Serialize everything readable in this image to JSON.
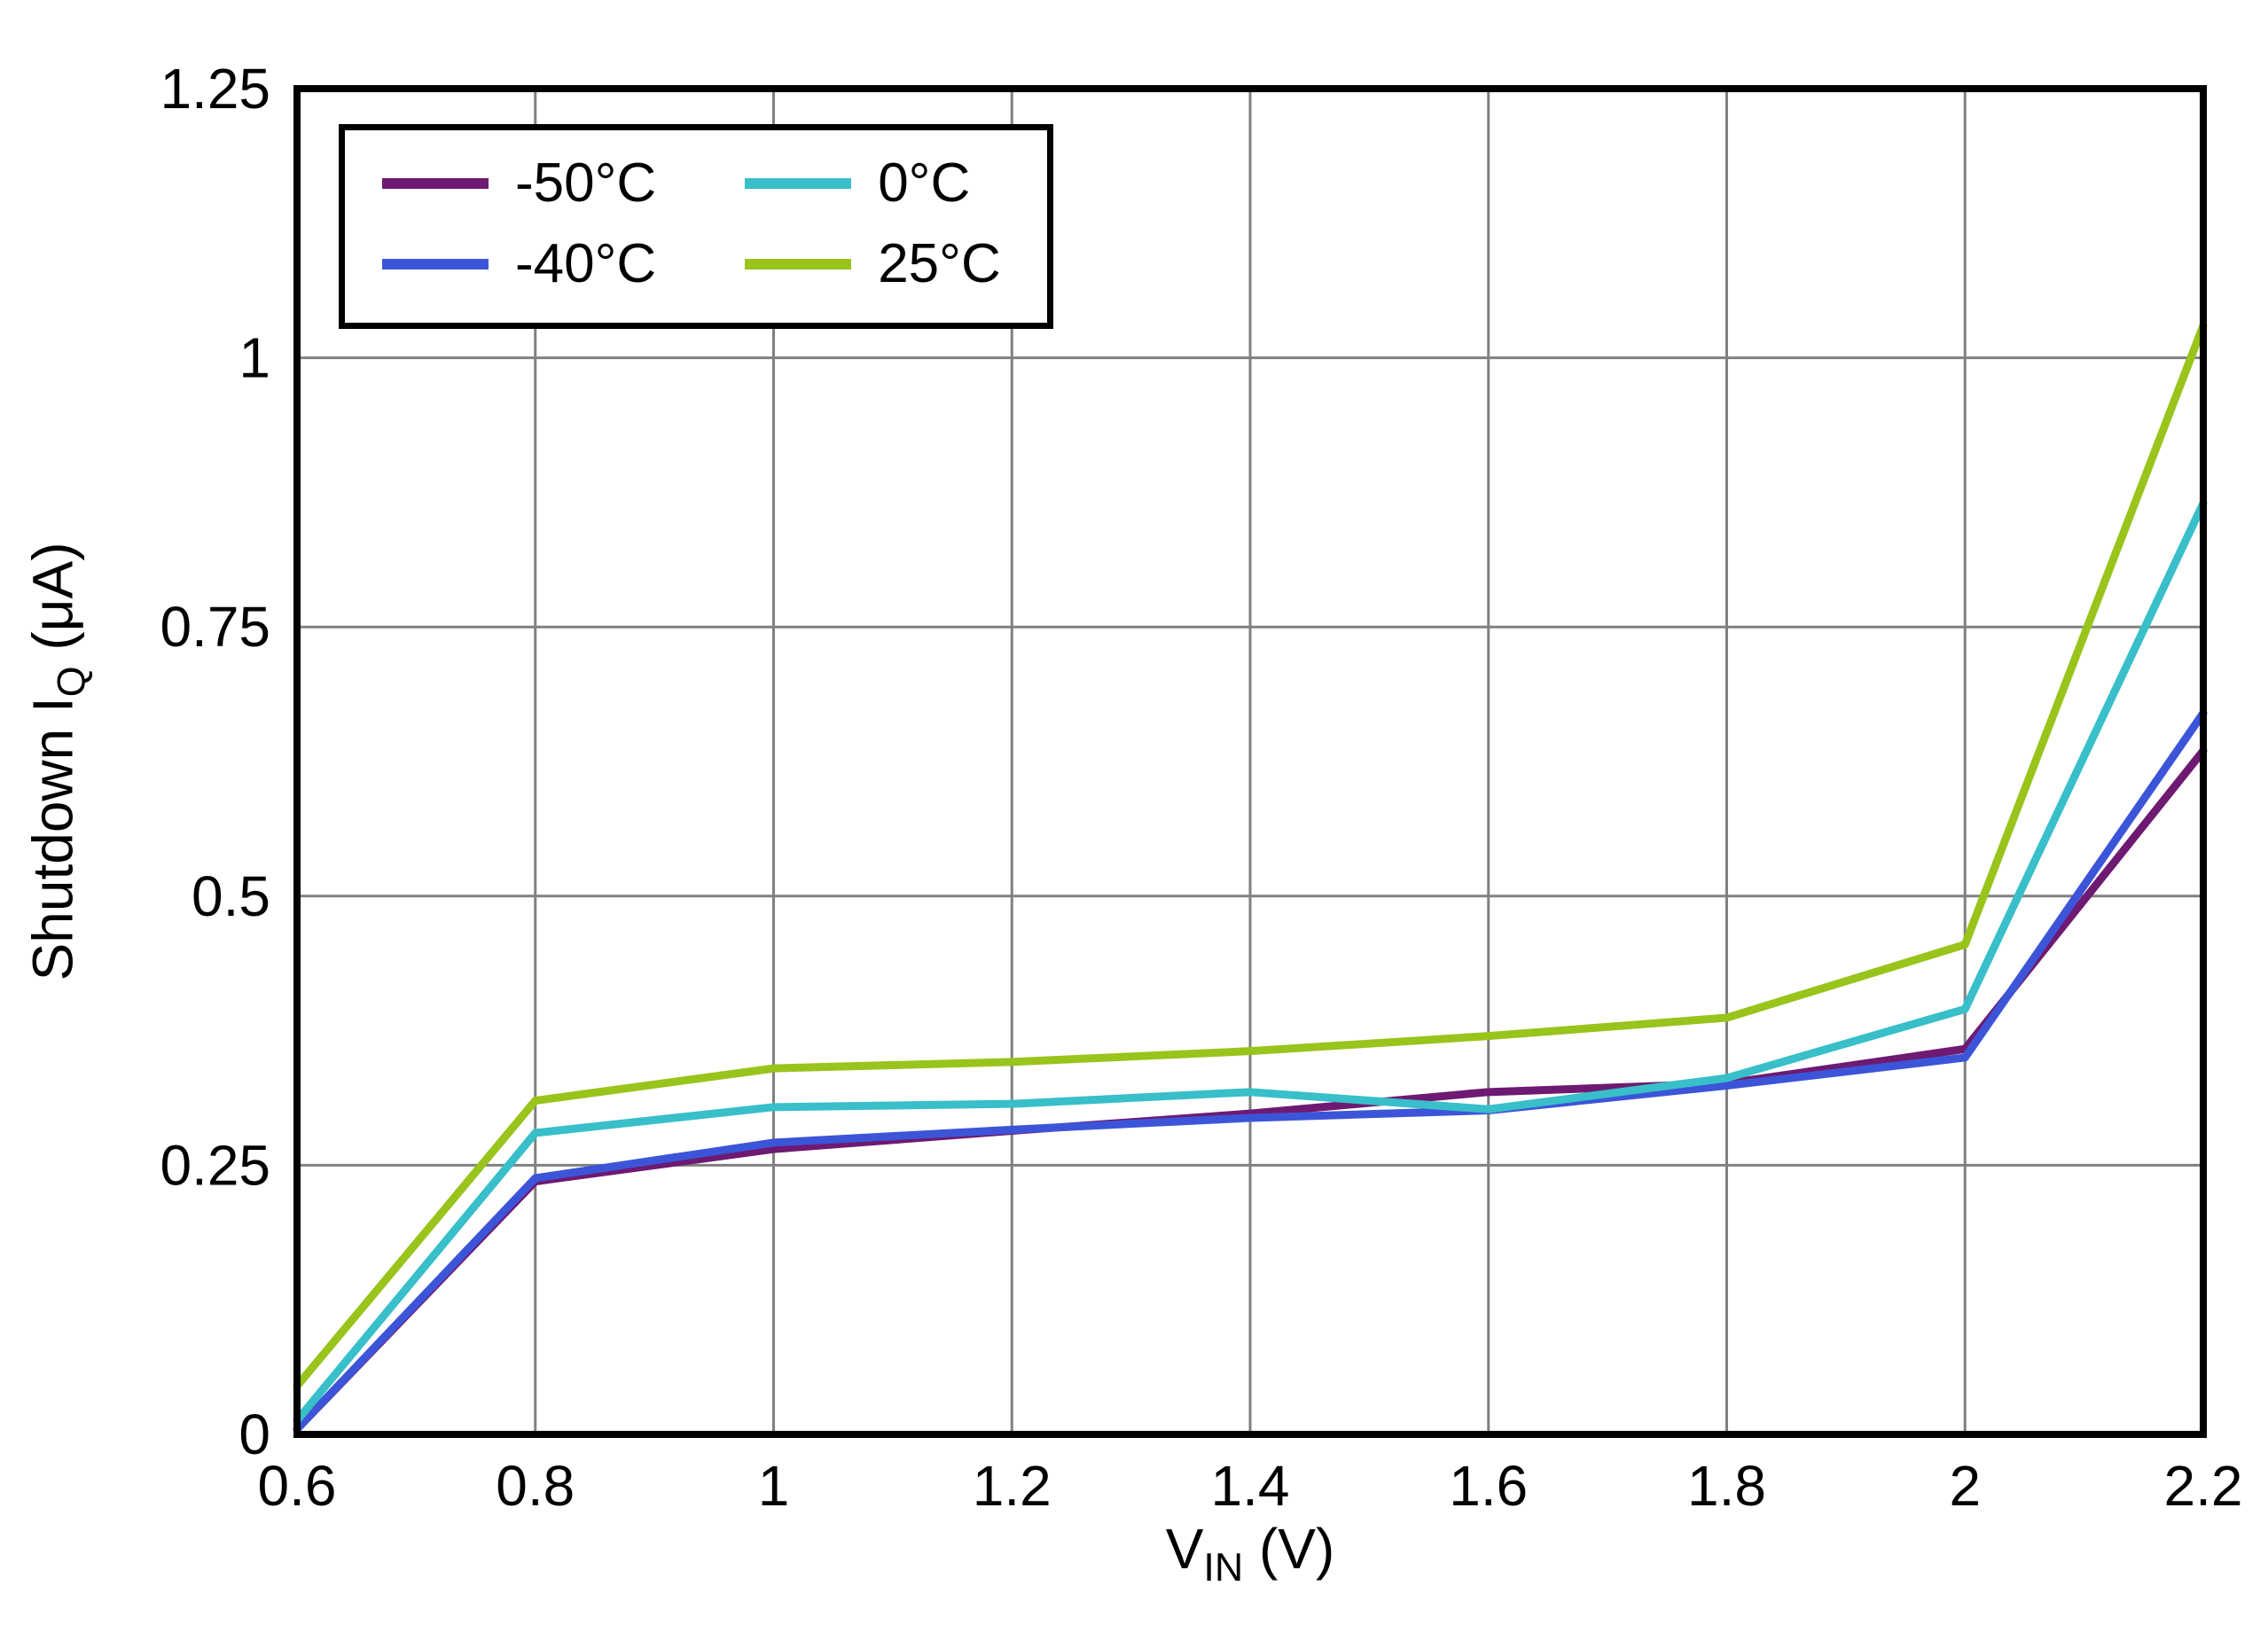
{
  "chart_data": {
    "type": "line",
    "title": "",
    "x": [
      0.6,
      0.8,
      1.0,
      1.2,
      1.4,
      1.6,
      1.8,
      2.0,
      2.2
    ],
    "series": [
      {
        "name": "-50°C",
        "color": "#6e1a72",
        "values": [
          0.005,
          0.235,
          0.265,
          0.282,
          0.298,
          0.318,
          0.326,
          0.358,
          0.635
        ]
      },
      {
        "name": "-40°C",
        "color": "#3c55d8",
        "values": [
          0.005,
          0.238,
          0.271,
          0.283,
          0.294,
          0.301,
          0.324,
          0.35,
          0.67
        ]
      },
      {
        "name": "0°C",
        "color": "#38bfc9",
        "values": [
          0.013,
          0.28,
          0.304,
          0.307,
          0.318,
          0.302,
          0.331,
          0.395,
          0.865
        ]
      },
      {
        "name": "25°C",
        "color": "#98c41c",
        "values": [
          0.045,
          0.31,
          0.34,
          0.346,
          0.356,
          0.37,
          0.387,
          0.455,
          1.03
        ]
      }
    ],
    "xlabel": {
      "main": "V",
      "sub": "IN",
      "rest": " (V)"
    },
    "ylabel": {
      "main": "Shutdown I",
      "sub": "Q",
      "rest": " (μA)"
    },
    "xlim": [
      0.6,
      2.2
    ],
    "ylim": [
      0,
      1.25
    ],
    "x_ticks": [
      {
        "v": 0.6,
        "label": "0.6"
      },
      {
        "v": 0.8,
        "label": "0.8"
      },
      {
        "v": 1.0,
        "label": "1"
      },
      {
        "v": 1.2,
        "label": "1.2"
      },
      {
        "v": 1.4,
        "label": "1.4"
      },
      {
        "v": 1.6,
        "label": "1.6"
      },
      {
        "v": 1.8,
        "label": "1.8"
      },
      {
        "v": 2.0,
        "label": "2"
      },
      {
        "v": 2.2,
        "label": "2.2"
      }
    ],
    "y_ticks": [
      {
        "v": 0,
        "label": "0"
      },
      {
        "v": 0.25,
        "label": "0.25"
      },
      {
        "v": 0.5,
        "label": "0.5"
      },
      {
        "v": 0.75,
        "label": "0.75"
      },
      {
        "v": 1,
        "label": "1"
      },
      {
        "v": 1.25,
        "label": "1.25"
      }
    ],
    "grid": true,
    "legend_position": "top-left",
    "colors": {
      "grid": "#808080",
      "border": "#000000",
      "background": "#ffffff"
    }
  }
}
